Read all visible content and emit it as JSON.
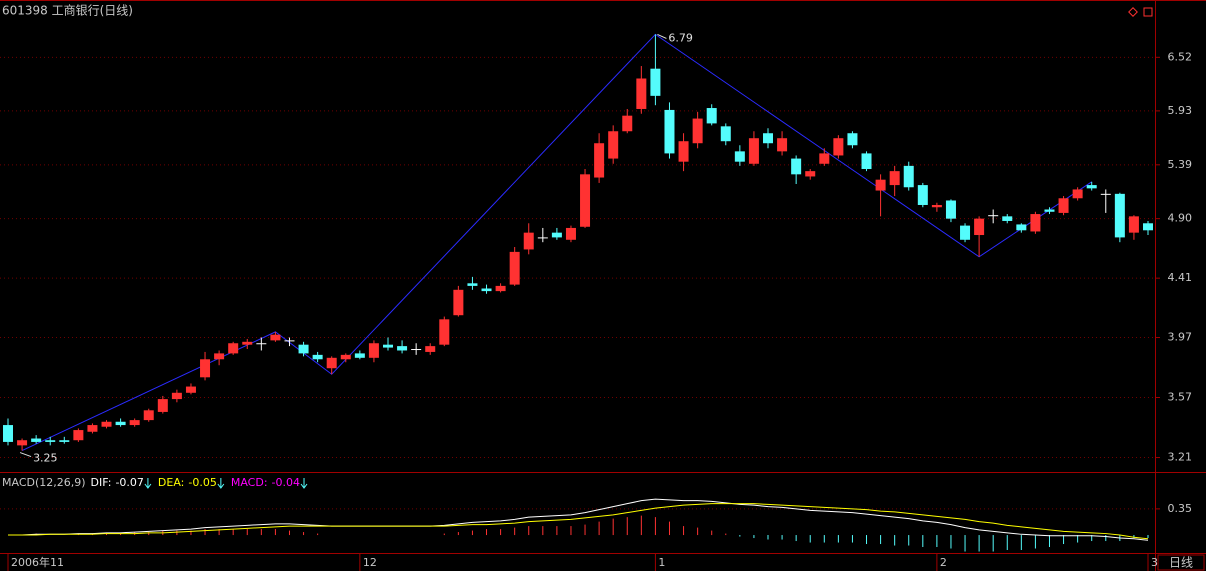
{
  "chart_data": [
    {
      "type": "candlestick",
      "title": "601398 工商银行(日线)",
      "log_scale": true,
      "grid": true,
      "categories": [
        "2006年11",
        null,
        null,
        null,
        null,
        null,
        null,
        null,
        null,
        null,
        null,
        null,
        null,
        null,
        null,
        null,
        null,
        null,
        null,
        null,
        null,
        null,
        null,
        null,
        null,
        "12",
        null,
        null,
        null,
        null,
        null,
        null,
        null,
        null,
        null,
        null,
        null,
        null,
        null,
        null,
        null,
        null,
        null,
        null,
        null,
        null,
        "1",
        null,
        null,
        null,
        null,
        null,
        null,
        null,
        null,
        null,
        null,
        null,
        null,
        null,
        null,
        null,
        null,
        null,
        null,
        null,
        "2",
        null,
        null,
        null,
        null,
        null,
        null,
        null,
        null,
        null,
        null,
        null,
        null,
        null,
        null,
        "3"
      ],
      "candles": {
        "open": [
          3.4,
          3.28,
          3.32,
          3.31,
          3.31,
          3.31,
          3.36,
          3.39,
          3.42,
          3.4,
          3.43,
          3.48,
          3.56,
          3.6,
          3.7,
          3.82,
          3.86,
          3.92,
          3.93,
          3.95,
          3.95,
          3.92,
          3.85,
          3.76,
          3.82,
          3.86,
          3.83,
          3.92,
          3.91,
          3.89,
          3.87,
          3.92,
          4.13,
          4.37,
          4.33,
          4.31,
          4.36,
          4.64,
          4.74,
          4.78,
          4.72,
          4.83,
          5.27,
          5.45,
          5.72,
          5.95,
          6.39,
          5.94,
          5.42,
          5.6,
          5.96,
          5.77,
          5.52,
          5.4,
          5.7,
          5.52,
          5.45,
          5.28,
          5.4,
          5.48,
          5.7,
          5.5,
          5.15,
          5.2,
          5.38,
          5.2,
          5.0,
          5.06,
          4.84,
          4.76,
          4.93,
          4.92,
          4.85,
          4.79,
          4.98,
          4.95,
          5.08,
          5.2,
          5.12,
          5.12,
          4.78,
          4.86
        ],
        "high": [
          3.44,
          3.32,
          3.34,
          3.33,
          3.33,
          3.38,
          3.41,
          3.43,
          3.44,
          3.44,
          3.5,
          3.58,
          3.62,
          3.66,
          3.87,
          3.88,
          3.94,
          3.96,
          3.97,
          4.01,
          3.97,
          3.94,
          3.87,
          3.84,
          3.86,
          3.88,
          3.95,
          3.97,
          3.95,
          3.93,
          3.93,
          4.12,
          4.35,
          4.42,
          4.36,
          4.37,
          4.66,
          4.86,
          4.82,
          4.82,
          4.84,
          5.35,
          5.7,
          5.78,
          5.95,
          6.42,
          6.79,
          6.02,
          5.7,
          5.92,
          6.0,
          5.8,
          5.58,
          5.72,
          5.75,
          5.72,
          5.48,
          5.35,
          5.55,
          5.68,
          5.72,
          5.52,
          5.3,
          5.38,
          5.42,
          5.22,
          5.04,
          5.07,
          4.86,
          4.92,
          4.98,
          4.94,
          4.86,
          4.96,
          5.0,
          5.1,
          5.18,
          5.23,
          5.16,
          5.13,
          4.93,
          4.88
        ],
        "low": [
          3.28,
          3.25,
          3.29,
          3.28,
          3.29,
          3.3,
          3.35,
          3.38,
          3.39,
          3.39,
          3.42,
          3.47,
          3.54,
          3.59,
          3.68,
          3.78,
          3.85,
          3.89,
          3.88,
          3.94,
          3.91,
          3.84,
          3.8,
          3.72,
          3.8,
          3.82,
          3.8,
          3.88,
          3.86,
          3.85,
          3.85,
          3.91,
          4.12,
          4.32,
          4.29,
          4.3,
          4.35,
          4.6,
          4.7,
          4.72,
          4.7,
          4.82,
          5.22,
          5.4,
          5.7,
          5.9,
          5.99,
          5.45,
          5.33,
          5.55,
          5.78,
          5.58,
          5.38,
          5.38,
          5.55,
          5.48,
          5.21,
          5.25,
          5.38,
          5.45,
          5.55,
          5.33,
          4.92,
          5.1,
          5.15,
          5.0,
          4.96,
          4.87,
          4.7,
          4.58,
          4.86,
          4.86,
          4.78,
          4.77,
          4.94,
          4.93,
          5.06,
          5.15,
          4.95,
          4.7,
          4.72,
          4.76
        ],
        "close": [
          3.3,
          3.31,
          3.3,
          3.3,
          3.3,
          3.37,
          3.4,
          3.42,
          3.4,
          3.43,
          3.49,
          3.56,
          3.6,
          3.64,
          3.82,
          3.86,
          3.93,
          3.94,
          3.93,
          3.99,
          3.95,
          3.86,
          3.82,
          3.83,
          3.85,
          3.83,
          3.93,
          3.9,
          3.88,
          3.89,
          3.91,
          4.1,
          4.32,
          4.35,
          4.31,
          4.35,
          4.62,
          4.78,
          4.74,
          4.74,
          4.82,
          5.3,
          5.6,
          5.72,
          5.88,
          6.28,
          6.09,
          5.5,
          5.62,
          5.85,
          5.8,
          5.62,
          5.42,
          5.65,
          5.6,
          5.65,
          5.3,
          5.33,
          5.5,
          5.65,
          5.58,
          5.35,
          5.25,
          5.33,
          5.18,
          5.02,
          5.02,
          4.9,
          4.72,
          4.9,
          4.93,
          4.88,
          4.8,
          4.94,
          4.96,
          5.08,
          5.16,
          5.17,
          5.12,
          4.74,
          4.92,
          4.8
        ]
      },
      "up_color": "#ff3232",
      "down_color": "#54fcfc",
      "flat_color": "#ffffff",
      "zigzag": {
        "x": [
          1,
          19,
          23,
          46,
          69,
          77
        ],
        "values": [
          3.25,
          4.01,
          3.72,
          6.79,
          4.58,
          5.23
        ],
        "color": "#2b2bff"
      },
      "ylim": [
        3.14,
        6.99
      ],
      "yticks": [
        3.21,
        3.57,
        3.97,
        4.41,
        {
          "value": 4.9,
          "label": "4.90"
        },
        5.39,
        5.93,
        6.52
      ]
    },
    {
      "type": "macd",
      "title": "MACD(12,26,9)",
      "series": [
        {
          "name": "DIF:",
          "color": "#ffffff",
          "values": [
            0.0,
            0.0,
            0.01,
            0.01,
            0.01,
            0.02,
            0.02,
            0.03,
            0.03,
            0.04,
            0.05,
            0.06,
            0.07,
            0.08,
            0.1,
            0.11,
            0.12,
            0.13,
            0.14,
            0.15,
            0.15,
            0.14,
            0.13,
            0.12,
            0.12,
            0.12,
            0.12,
            0.12,
            0.12,
            0.12,
            0.12,
            0.13,
            0.15,
            0.17,
            0.18,
            0.19,
            0.21,
            0.24,
            0.25,
            0.26,
            0.27,
            0.3,
            0.34,
            0.38,
            0.42,
            0.46,
            0.48,
            0.47,
            0.46,
            0.46,
            0.45,
            0.43,
            0.41,
            0.4,
            0.38,
            0.37,
            0.35,
            0.33,
            0.32,
            0.31,
            0.3,
            0.28,
            0.26,
            0.24,
            0.22,
            0.19,
            0.17,
            0.14,
            0.1,
            0.07,
            0.05,
            0.03,
            0.01,
            0.0,
            -0.01,
            -0.01,
            -0.01,
            -0.01,
            -0.02,
            -0.04,
            -0.05,
            -0.07
          ]
        },
        {
          "name": "DEA:",
          "color": "#ffff00",
          "values": [
            0.0,
            0.0,
            0.0,
            0.01,
            0.01,
            0.01,
            0.01,
            0.02,
            0.02,
            0.02,
            0.03,
            0.03,
            0.04,
            0.05,
            0.06,
            0.07,
            0.08,
            0.09,
            0.1,
            0.11,
            0.12,
            0.12,
            0.12,
            0.12,
            0.12,
            0.12,
            0.12,
            0.12,
            0.12,
            0.12,
            0.12,
            0.12,
            0.13,
            0.14,
            0.14,
            0.15,
            0.16,
            0.18,
            0.19,
            0.2,
            0.21,
            0.23,
            0.25,
            0.27,
            0.3,
            0.33,
            0.36,
            0.38,
            0.4,
            0.41,
            0.42,
            0.42,
            0.42,
            0.42,
            0.41,
            0.4,
            0.39,
            0.38,
            0.37,
            0.36,
            0.35,
            0.34,
            0.32,
            0.31,
            0.29,
            0.27,
            0.25,
            0.23,
            0.21,
            0.18,
            0.16,
            0.13,
            0.11,
            0.09,
            0.07,
            0.05,
            0.04,
            0.03,
            0.02,
            0.0,
            -0.03,
            -0.05
          ]
        }
      ],
      "bars": {
        "name": "MACD:",
        "color": "#ff00ff",
        "up_color": "#ff3232",
        "down_color": "#54fcfc",
        "values": [
          0,
          0,
          0.02,
          0,
          0,
          0.02,
          0.02,
          0.02,
          0.02,
          0.04,
          0.04,
          0.06,
          0.06,
          0.06,
          0.08,
          0.08,
          0.08,
          0.08,
          0.08,
          0.08,
          0.06,
          0.04,
          0.02,
          0,
          0,
          0,
          0,
          0,
          0,
          0,
          0,
          0.02,
          0.04,
          0.06,
          0.08,
          0.08,
          0.1,
          0.12,
          0.12,
          0.12,
          0.12,
          0.14,
          0.18,
          0.22,
          0.24,
          0.26,
          0.24,
          0.18,
          0.12,
          0.1,
          0.06,
          0.02,
          -0.02,
          -0.04,
          -0.06,
          -0.06,
          -0.08,
          -0.1,
          -0.1,
          -0.1,
          -0.1,
          -0.12,
          -0.12,
          -0.14,
          -0.14,
          -0.16,
          -0.16,
          -0.18,
          -0.22,
          -0.22,
          -0.22,
          -0.2,
          -0.2,
          -0.18,
          -0.16,
          -0.12,
          -0.1,
          -0.08,
          -0.08,
          -0.08,
          -0.04,
          -0.04
        ]
      },
      "ylim": [
        -0.24,
        0.79
      ],
      "yticks": [
        0.35
      ]
    }
  ],
  "period_tab": "日线"
}
